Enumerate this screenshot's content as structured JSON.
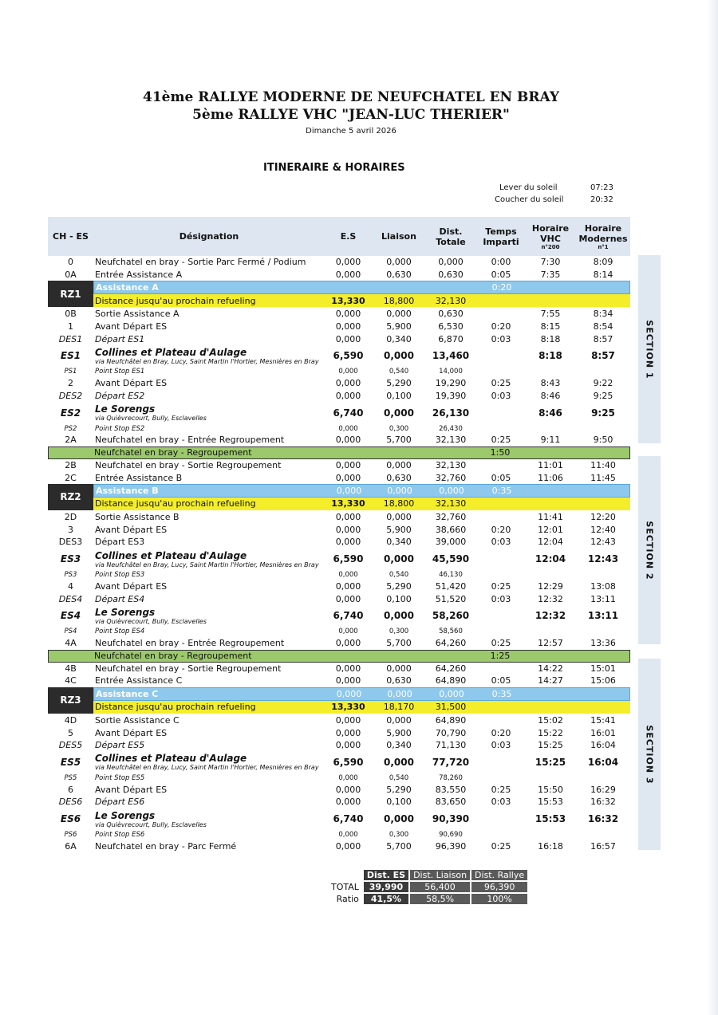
{
  "title1": "41ème RALLYE MODERNE DE NEUFCHATEL EN BRAY",
  "title2": "5ème RALLYE VHC \"JEAN-LUC THERIER\"",
  "date": "Dimanche 5 avril 2026",
  "heading": "ITINERAIRE & HORAIRES",
  "sun": {
    "rise_label": "Lever du soleil",
    "rise": "07:23",
    "set_label": "Coucher du soleil",
    "set": "20:32"
  },
  "headers": [
    "CH - ES",
    "Désignation",
    "E.S",
    "Liaison",
    "Dist. Totale",
    "Temps Imparti",
    "Horaire VHC",
    "Horaire Modernes"
  ],
  "header_subs": {
    "vhc": "n°200",
    "mod": "n°1"
  },
  "sections": [
    "SECTION 1",
    "SECTION 2",
    "SECTION 3"
  ],
  "rows": [
    {
      "t": "n",
      "v": [
        "0",
        "Neufchatel en bray - Sortie Parc Fermé / Podium",
        "0,000",
        "0,000",
        "0,000",
        "0:00",
        "7:30",
        "8:09"
      ]
    },
    {
      "t": "n",
      "v": [
        "0A",
        "Entrée Assistance A",
        "0,000",
        "0,630",
        "0,630",
        "0:05",
        "7:35",
        "8:14"
      ]
    },
    {
      "t": "rz",
      "rz": "RZ1",
      "blue": [
        "Assistance A",
        "",
        "",
        "",
        "0:20"
      ],
      "yel": [
        "Distance jusqu'au prochain refueling",
        "13,330",
        "18,800",
        "32,130"
      ]
    },
    {
      "t": "n",
      "v": [
        "0B",
        "Sortie Assistance A",
        "0,000",
        "0,000",
        "0,630",
        "",
        "7:55",
        "8:34"
      ]
    },
    {
      "t": "n",
      "v": [
        "1",
        "Avant Départ ES",
        "0,000",
        "5,900",
        "6,530",
        "0:20",
        "8:15",
        "8:54"
      ]
    },
    {
      "t": "it",
      "v": [
        "DES1",
        "Départ ES1",
        "0,000",
        "0,340",
        "6,870",
        "0:03",
        "8:18",
        "8:57"
      ]
    },
    {
      "t": "es",
      "sub": "via Neufchâtel en Bray, Lucy, Saint Martin l'Hortier, Mesnières en Bray",
      "v": [
        "ES1",
        "Collines et Plateau d'Aulage",
        "6,590",
        "0,000",
        "13,460",
        "",
        "8:18",
        "8:57"
      ]
    },
    {
      "t": "ps",
      "v": [
        "PS1",
        "Point Stop ES1",
        "0,000",
        "0,540",
        "14,000",
        "",
        "",
        ""
      ]
    },
    {
      "t": "n",
      "v": [
        "2",
        "Avant Départ ES",
        "0,000",
        "5,290",
        "19,290",
        "0:25",
        "8:43",
        "9:22"
      ]
    },
    {
      "t": "it",
      "v": [
        "DES2",
        "Départ ES2",
        "0,000",
        "0,100",
        "19,390",
        "0:03",
        "8:46",
        "9:25"
      ]
    },
    {
      "t": "es",
      "sub": "via Quièvrecourt, Bully, Esclavelles",
      "v": [
        "ES2",
        "Le Sorengs",
        "6,740",
        "0,000",
        "26,130",
        "",
        "8:46",
        "9:25"
      ]
    },
    {
      "t": "ps",
      "v": [
        "PS2",
        "Point Stop ES2",
        "0,000",
        "0,300",
        "26,430",
        "",
        "",
        ""
      ]
    },
    {
      "t": "n",
      "v": [
        "2A",
        "Neufchatel en bray - Entrée Regroupement",
        "0,000",
        "5,700",
        "32,130",
        "0:25",
        "9:11",
        "9:50"
      ]
    },
    {
      "t": "grp",
      "v": [
        "Neufchatel en bray - Regroupement",
        "1:50"
      ]
    },
    {
      "t": "n",
      "v": [
        "2B",
        "Neufchatel en bray - Sortie Regroupement",
        "0,000",
        "0,000",
        "32,130",
        "",
        "11:01",
        "11:40"
      ]
    },
    {
      "t": "n",
      "v": [
        "2C",
        "Entrée Assistance B",
        "0,000",
        "0,630",
        "32,760",
        "0:05",
        "11:06",
        "11:45"
      ]
    },
    {
      "t": "rz",
      "rz": "RZ2",
      "blue": [
        "Assistance B",
        "0,000",
        "0,000",
        "0,000",
        "0:35"
      ],
      "yel": [
        "Distance jusqu'au prochain refueling",
        "13,330",
        "18,800",
        "32,130"
      ]
    },
    {
      "t": "n",
      "v": [
        "2D",
        "Sortie Assistance B",
        "0,000",
        "0,000",
        "32,760",
        "",
        "11:41",
        "12:20"
      ]
    },
    {
      "t": "n",
      "v": [
        "3",
        "Avant Départ ES",
        "0,000",
        "5,900",
        "38,660",
        "0:20",
        "12:01",
        "12:40"
      ]
    },
    {
      "t": "n",
      "v": [
        "DES3",
        "Départ ES3",
        "0,000",
        "0,340",
        "39,000",
        "0:03",
        "12:04",
        "12:43"
      ]
    },
    {
      "t": "es",
      "sub": "via Neufchâtel en Bray, Lucy, Saint Martin l'Hortier, Mesnières en Bray",
      "v": [
        "ES3",
        "Collines et Plateau d'Aulage",
        "6,590",
        "0,000",
        "45,590",
        "",
        "12:04",
        "12:43"
      ]
    },
    {
      "t": "ps",
      "v": [
        "PS3",
        "Point Stop ES3",
        "0,000",
        "0,540",
        "46,130",
        "",
        "",
        ""
      ]
    },
    {
      "t": "n",
      "v": [
        "4",
        "Avant Départ ES",
        "0,000",
        "5,290",
        "51,420",
        "0:25",
        "12:29",
        "13:08"
      ]
    },
    {
      "t": "it",
      "v": [
        "DES4",
        "Départ ES4",
        "0,000",
        "0,100",
        "51,520",
        "0:03",
        "12:32",
        "13:11"
      ]
    },
    {
      "t": "es",
      "sub": "via Quièvrecourt, Bully, Esclavelles",
      "v": [
        "ES4",
        "Le Sorengs",
        "6,740",
        "0,000",
        "58,260",
        "",
        "12:32",
        "13:11"
      ]
    },
    {
      "t": "ps",
      "v": [
        "PS4",
        "Point Stop ES4",
        "0,000",
        "0,300",
        "58,560",
        "",
        "",
        ""
      ]
    },
    {
      "t": "n",
      "v": [
        "4A",
        "Neufchatel en bray - Entrée Regroupement",
        "0,000",
        "5,700",
        "64,260",
        "0:25",
        "12:57",
        "13:36"
      ]
    },
    {
      "t": "grp",
      "v": [
        "Neufchatel en bray - Regroupement",
        "1:25"
      ]
    },
    {
      "t": "n",
      "v": [
        "4B",
        "Neufchatel en bray - Sortie Regroupement",
        "0,000",
        "0,000",
        "64,260",
        "",
        "14:22",
        "15:01"
      ]
    },
    {
      "t": "n",
      "v": [
        "4C",
        "Entrée Assistance C",
        "0,000",
        "0,630",
        "64,890",
        "0:05",
        "14:27",
        "15:06"
      ]
    },
    {
      "t": "rz",
      "rz": "RZ3",
      "blue": [
        "Assistance C",
        "0,000",
        "0,000",
        "0,000",
        "0:35"
      ],
      "yel": [
        "Distance jusqu'au prochain refueling",
        "13,330",
        "18,170",
        "31,500"
      ]
    },
    {
      "t": "n",
      "v": [
        "4D",
        "Sortie Assistance C",
        "0,000",
        "0,000",
        "64,890",
        "",
        "15:02",
        "15:41"
      ]
    },
    {
      "t": "n",
      "v": [
        "5",
        "Avant Départ ES",
        "0,000",
        "5,900",
        "70,790",
        "0:20",
        "15:22",
        "16:01"
      ]
    },
    {
      "t": "it",
      "v": [
        "DES5",
        "Départ ES5",
        "0,000",
        "0,340",
        "71,130",
        "0:03",
        "15:25",
        "16:04"
      ]
    },
    {
      "t": "es",
      "sub": "via Neufchâtel en Bray, Lucy, Saint Martin l'Hortier, Mesnières en Bray",
      "v": [
        "ES5",
        "Collines et Plateau d'Aulage",
        "6,590",
        "0,000",
        "77,720",
        "",
        "15:25",
        "16:04"
      ]
    },
    {
      "t": "ps",
      "v": [
        "PS5",
        "Point Stop ES5",
        "0,000",
        "0,540",
        "78,260",
        "",
        "",
        ""
      ]
    },
    {
      "t": "n",
      "v": [
        "6",
        "Avant Départ ES",
        "0,000",
        "5,290",
        "83,550",
        "0:25",
        "15:50",
        "16:29"
      ]
    },
    {
      "t": "it",
      "v": [
        "DES6",
        "Départ ES6",
        "0,000",
        "0,100",
        "83,650",
        "0:03",
        "15:53",
        "16:32"
      ]
    },
    {
      "t": "es",
      "sub": "via Quièvrecourt, Bully, Esclavelles",
      "v": [
        "ES6",
        "Le Sorengs",
        "6,740",
        "0,000",
        "90,390",
        "",
        "15:53",
        "16:32"
      ]
    },
    {
      "t": "ps",
      "v": [
        "PS6",
        "Point Stop ES6",
        "0,000",
        "0,300",
        "90,690",
        "",
        "",
        ""
      ]
    },
    {
      "t": "n",
      "v": [
        "6A",
        "Neufchatel en bray - Parc Fermé",
        "0,000",
        "5,700",
        "96,390",
        "0:25",
        "16:18",
        "16:57"
      ]
    }
  ],
  "totals": {
    "headers": [
      "Dist. ES",
      "Dist. Liaison",
      "Dist. Rallye"
    ],
    "total_label": "TOTAL",
    "total": [
      "39,990",
      "56,400",
      "96,390"
    ],
    "ratio_label": "Ratio",
    "ratio": [
      "41,5%",
      "58,5%",
      "100%"
    ]
  }
}
